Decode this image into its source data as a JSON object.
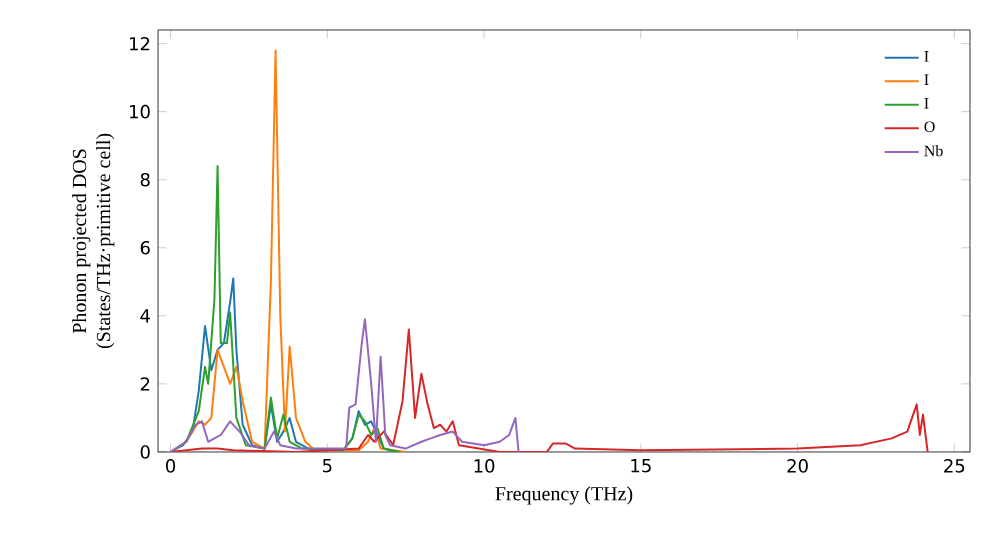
{
  "chart_data": {
    "type": "line",
    "xlabel": "Frequency (THz)",
    "ylabel": "Phonon projected DOS\n(States/THz·primitive cell)",
    "xlim": [
      -0.4,
      25.5
    ],
    "ylim": [
      0,
      12.4
    ],
    "xticks": [
      0,
      5,
      10,
      15,
      20,
      25
    ],
    "yticks": [
      0,
      2,
      4,
      6,
      8,
      10,
      12
    ],
    "legend": "top right",
    "grid": false,
    "series": [
      {
        "name": "I",
        "color": "#1f77b4",
        "x": [
          0,
          0.4,
          0.7,
          0.9,
          1.1,
          1.3,
          1.5,
          1.7,
          1.9,
          2.0,
          2.1,
          2.3,
          2.6,
          3.0,
          3.2,
          3.4,
          3.6,
          3.8,
          4.0,
          4.5,
          5.5,
          5.8,
          6.0,
          6.2,
          6.4,
          6.6,
          6.8,
          7.2
        ],
        "values": [
          0,
          0.2,
          0.6,
          1.8,
          3.7,
          2.4,
          3.0,
          3.2,
          4.4,
          5.1,
          3.0,
          0.8,
          0.2,
          0.1,
          1.4,
          0.3,
          0.6,
          1.0,
          0.3,
          0.05,
          0.05,
          0.4,
          1.2,
          0.8,
          0.9,
          0.5,
          0.1,
          0
        ]
      },
      {
        "name": "I",
        "color": "#ff7f0e",
        "x": [
          0,
          0.5,
          0.9,
          1.1,
          1.3,
          1.5,
          1.7,
          1.9,
          2.1,
          2.3,
          2.6,
          3.0,
          3.2,
          3.35,
          3.5,
          3.65,
          3.8,
          4.0,
          4.3,
          4.6,
          6.0,
          6.3,
          6.5,
          6.7,
          7.5
        ],
        "values": [
          0,
          0.3,
          0.9,
          0.8,
          1.0,
          3.0,
          2.5,
          2.0,
          2.5,
          1.5,
          0.3,
          0.1,
          5.0,
          11.8,
          4.0,
          0.6,
          3.1,
          1.0,
          0.3,
          0.05,
          0.05,
          0.3,
          0.7,
          0.1,
          0
        ]
      },
      {
        "name": "I",
        "color": "#2ca02c",
        "x": [
          0,
          0.5,
          0.9,
          1.1,
          1.2,
          1.4,
          1.5,
          1.6,
          1.8,
          1.9,
          2.1,
          2.4,
          3.0,
          3.2,
          3.4,
          3.6,
          3.8,
          4.2,
          5.5,
          5.8,
          6.0,
          6.2,
          6.4,
          6.6,
          6.8,
          7.3
        ],
        "values": [
          0,
          0.3,
          1.2,
          2.5,
          2.0,
          4.5,
          8.4,
          3.2,
          3.2,
          4.1,
          1.0,
          0.2,
          0.1,
          1.6,
          0.4,
          1.1,
          0.3,
          0.1,
          0.05,
          0.4,
          1.1,
          0.9,
          0.5,
          0.7,
          0.1,
          0
        ]
      },
      {
        "name": "O",
        "color": "#d62728",
        "x": [
          0,
          1,
          1.5,
          2,
          4,
          6.0,
          6.3,
          6.5,
          6.8,
          7.1,
          7.4,
          7.6,
          7.8,
          8.0,
          8.2,
          8.4,
          8.6,
          8.8,
          9.0,
          9.2,
          10.5,
          12.0,
          12.2,
          12.6,
          12.9,
          15,
          20,
          22,
          23,
          23.5,
          23.8,
          23.9,
          24.0,
          24.15
        ],
        "values": [
          0,
          0.1,
          0.1,
          0.05,
          0,
          0.1,
          0.5,
          0.3,
          0.6,
          0.2,
          1.5,
          3.6,
          1.0,
          2.3,
          1.4,
          0.7,
          0.8,
          0.6,
          0.9,
          0.2,
          0,
          0,
          0.25,
          0.25,
          0.1,
          0.05,
          0.1,
          0.2,
          0.4,
          0.6,
          1.4,
          0.5,
          1.1,
          0
        ]
      },
      {
        "name": "Nb",
        "color": "#9467bd",
        "x": [
          0,
          0.5,
          0.8,
          1.0,
          1.2,
          1.6,
          1.9,
          2.2,
          2.5,
          3.0,
          3.3,
          3.5,
          4.0,
          5.6,
          5.7,
          5.9,
          6.1,
          6.2,
          6.4,
          6.55,
          6.7,
          6.85,
          7.0,
          7.5,
          8.0,
          8.3,
          8.6,
          9.0,
          9.3,
          10,
          10.5,
          10.8,
          11.0,
          11.1
        ],
        "values": [
          0,
          0.3,
          0.8,
          0.9,
          0.3,
          0.5,
          0.9,
          0.6,
          0.2,
          0.1,
          0.6,
          0.2,
          0.1,
          0.1,
          1.3,
          1.4,
          3.2,
          3.9,
          2.0,
          0.3,
          2.8,
          0.5,
          0.2,
          0.1,
          0.3,
          0.4,
          0.5,
          0.6,
          0.3,
          0.2,
          0.3,
          0.5,
          1.0,
          0
        ]
      }
    ]
  }
}
